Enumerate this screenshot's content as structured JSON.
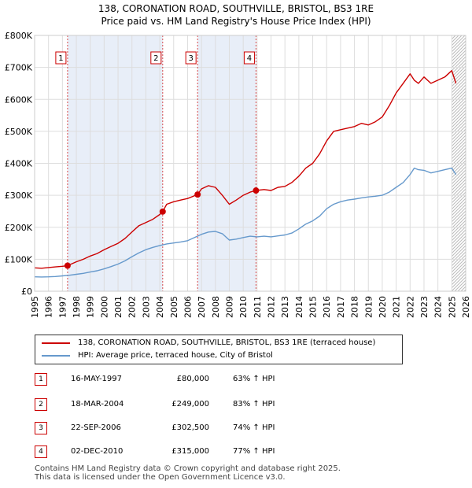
{
  "title_line1": "138, CORONATION ROAD, SOUTHVILLE, BRISTOL, BS3 1RE",
  "title_line2": "Price paid vs. HM Land Registry's House Price Index (HPI)",
  "colors": {
    "property": "#cc0000",
    "hpi": "#6699cc",
    "shade": "#e8eef8",
    "grid": "#dddddd",
    "marker_line": "#cc0000"
  },
  "legend": {
    "property_label": "138, CORONATION ROAD, SOUTHVILLE, BRISTOL, BS3 1RE (terraced house)",
    "hpi_label": "HPI: Average price, terraced house, City of Bristol"
  },
  "sales": [
    {
      "num": "1",
      "date": "16-MAY-1997",
      "price": "£80,000",
      "hpi": "63% ↑ HPI"
    },
    {
      "num": "2",
      "date": "18-MAR-2004",
      "price": "£249,000",
      "hpi": "83% ↑ HPI"
    },
    {
      "num": "3",
      "date": "22-SEP-2006",
      "price": "£302,500",
      "hpi": "74% ↑ HPI"
    },
    {
      "num": "4",
      "date": "02-DEC-2010",
      "price": "£315,000",
      "hpi": "77% ↑ HPI"
    }
  ],
  "footer_line1": "Contains HM Land Registry data © Crown copyright and database right 2025.",
  "footer_line2": "This data is licensed under the Open Government Licence v3.0.",
  "chart_data": {
    "type": "line",
    "title": "138, CORONATION ROAD, SOUTHVILLE, BRISTOL, BS3 1RE",
    "subtitle": "Price paid vs. HM Land Registry's House Price Index (HPI)",
    "xlabel": "",
    "ylabel": "",
    "xlim": [
      1995,
      2026
    ],
    "ylim": [
      0,
      800000
    ],
    "x_ticks": [
      1995,
      1996,
      1997,
      1998,
      1999,
      2000,
      2001,
      2002,
      2003,
      2004,
      2005,
      2006,
      2007,
      2008,
      2009,
      2010,
      2011,
      2012,
      2013,
      2014,
      2015,
      2016,
      2017,
      2018,
      2019,
      2020,
      2021,
      2022,
      2023,
      2024,
      2025,
      2026
    ],
    "y_ticks": [
      0,
      100000,
      200000,
      300000,
      400000,
      500000,
      600000,
      700000,
      800000
    ],
    "y_tick_labels": [
      "£0",
      "£100K",
      "£200K",
      "£300K",
      "£400K",
      "£500K",
      "£600K",
      "£700K",
      "£800K"
    ],
    "grid": true,
    "shaded_ranges": [
      [
        1997.37,
        2004.21
      ],
      [
        2006.72,
        2010.92
      ]
    ],
    "future_hatch_from": 2025.0,
    "series": [
      {
        "name": "138, CORONATION ROAD, SOUTHVILLE, BRISTOL, BS3 1RE (terraced house)",
        "x": [
          1995,
          1995.5,
          1996,
          1996.5,
          1997,
          1997.37,
          1998,
          1998.5,
          1999,
          1999.5,
          2000,
          2000.5,
          2001,
          2001.5,
          2002,
          2002.5,
          2003,
          2003.5,
          2004,
          2004.21,
          2004.5,
          2005,
          2005.5,
          2006,
          2006.72,
          2007,
          2007.5,
          2008,
          2008.5,
          2009,
          2009.5,
          2010,
          2010.5,
          2010.92,
          2011.5,
          2012,
          2012.5,
          2013,
          2013.5,
          2014,
          2014.5,
          2015,
          2015.5,
          2016,
          2016.5,
          2017,
          2017.5,
          2018,
          2018.5,
          2019,
          2019.5,
          2020,
          2020.5,
          2021,
          2021.5,
          2022,
          2022.3,
          2022.6,
          2023,
          2023.5,
          2024,
          2024.5,
          2025,
          2025.3
        ],
        "values": [
          73000,
          72000,
          74000,
          76000,
          78000,
          80000,
          92000,
          100000,
          110000,
          118000,
          130000,
          140000,
          150000,
          165000,
          185000,
          205000,
          215000,
          225000,
          240000,
          249000,
          272000,
          280000,
          285000,
          290000,
          302500,
          320000,
          330000,
          325000,
          300000,
          272000,
          285000,
          300000,
          310000,
          315000,
          318000,
          315000,
          325000,
          328000,
          340000,
          360000,
          385000,
          400000,
          430000,
          470000,
          500000,
          505000,
          510000,
          515000,
          525000,
          520000,
          530000,
          545000,
          580000,
          620000,
          650000,
          680000,
          660000,
          650000,
          670000,
          650000,
          660000,
          670000,
          690000,
          650000
        ]
      },
      {
        "name": "HPI: Average price, terraced house, City of Bristol",
        "x": [
          1995,
          1995.5,
          1996,
          1996.5,
          1997,
          1997.5,
          1998,
          1998.5,
          1999,
          1999.5,
          2000,
          2000.5,
          2001,
          2001.5,
          2002,
          2002.5,
          2003,
          2003.5,
          2004,
          2004.5,
          2005,
          2005.5,
          2006,
          2006.5,
          2007,
          2007.5,
          2008,
          2008.5,
          2009,
          2009.5,
          2010,
          2010.5,
          2011,
          2011.5,
          2012,
          2012.5,
          2013,
          2013.5,
          2014,
          2014.5,
          2015,
          2015.5,
          2016,
          2016.5,
          2017,
          2017.5,
          2018,
          2018.5,
          2019,
          2019.5,
          2020,
          2020.5,
          2021,
          2021.5,
          2022,
          2022.3,
          2022.6,
          2023,
          2023.5,
          2024,
          2024.5,
          2025,
          2025.3
        ],
        "values": [
          45000,
          44500,
          45000,
          46000,
          48000,
          50000,
          53000,
          56000,
          60000,
          64000,
          70000,
          77000,
          85000,
          95000,
          108000,
          120000,
          130000,
          137000,
          143000,
          148000,
          151000,
          154000,
          158000,
          168000,
          178000,
          185000,
          187000,
          180000,
          160000,
          163000,
          168000,
          172000,
          170000,
          172000,
          170000,
          173000,
          176000,
          182000,
          195000,
          210000,
          220000,
          235000,
          258000,
          272000,
          280000,
          285000,
          288000,
          292000,
          295000,
          297000,
          300000,
          310000,
          325000,
          340000,
          365000,
          385000,
          380000,
          378000,
          370000,
          375000,
          380000,
          385000,
          365000
        ]
      }
    ],
    "sales_markers": [
      {
        "label": "1",
        "x": 1997.37,
        "y": 80000
      },
      {
        "label": "2",
        "x": 2004.21,
        "y": 249000
      },
      {
        "label": "3",
        "x": 2006.72,
        "y": 302500
      },
      {
        "label": "4",
        "x": 2010.92,
        "y": 315000
      }
    ]
  }
}
